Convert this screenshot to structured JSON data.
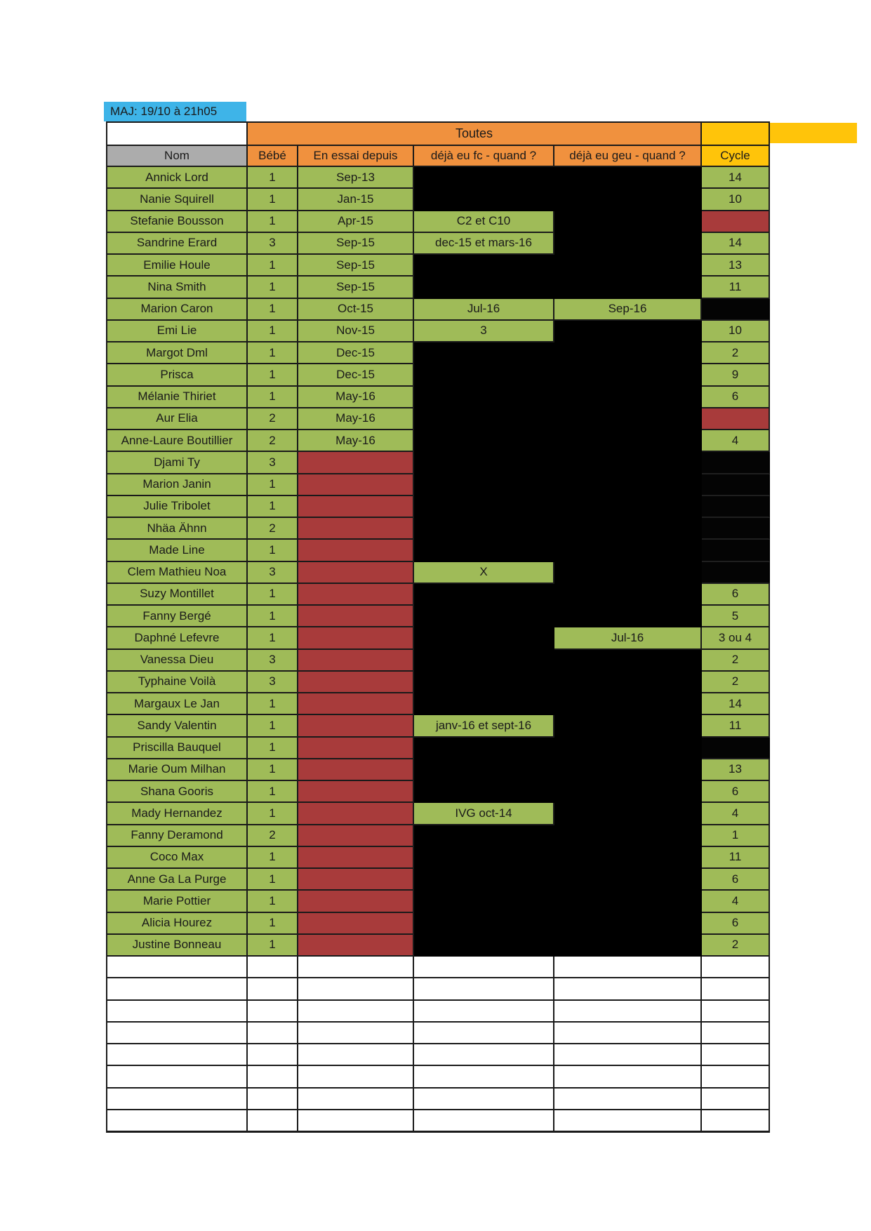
{
  "maj": {
    "text": "MAJ: 19/10 à 21h05"
  },
  "colors": {
    "blue": "#3eb4e8",
    "orange": "#f0913e",
    "yellow": "#ffc40a",
    "gray": "#acacac",
    "green": "#9fbb58",
    "red": "#a83b3b",
    "black": "#000000"
  },
  "table": {
    "group_header": {
      "title": "Toutes"
    },
    "columns": [
      "Nom",
      "Bébé",
      "En essai depuis",
      "déjà eu fc - quand ?",
      "déjà eu geu - quand ?",
      "Cycle"
    ],
    "rows": [
      {
        "name": "Annick Lord",
        "bebe": "1",
        "essai": {
          "v": "Sep-13",
          "s": "green"
        },
        "fc": {
          "v": "",
          "s": "black"
        },
        "geu": {
          "v": "",
          "s": "black"
        },
        "cycle": {
          "v": "14",
          "s": "green"
        }
      },
      {
        "name": "Nanie Squirell",
        "bebe": "1",
        "essai": {
          "v": "Jan-15",
          "s": "green"
        },
        "fc": {
          "v": "",
          "s": "black"
        },
        "geu": {
          "v": "",
          "s": "black"
        },
        "cycle": {
          "v": "10",
          "s": "green"
        }
      },
      {
        "name": "Stefanie Bousson",
        "bebe": "1",
        "essai": {
          "v": "Apr-15",
          "s": "green"
        },
        "fc": {
          "v": "C2 et C10",
          "s": "green"
        },
        "geu": {
          "v": "",
          "s": "black"
        },
        "cycle": {
          "v": "",
          "s": "red"
        }
      },
      {
        "name": "Sandrine Erard",
        "bebe": "3",
        "essai": {
          "v": "Sep-15",
          "s": "green"
        },
        "fc": {
          "v": "dec-15 et mars-16",
          "s": "green"
        },
        "geu": {
          "v": "",
          "s": "black"
        },
        "cycle": {
          "v": "14",
          "s": "green"
        }
      },
      {
        "name": "Emilie Houle",
        "bebe": "1",
        "essai": {
          "v": "Sep-15",
          "s": "green"
        },
        "fc": {
          "v": "",
          "s": "black"
        },
        "geu": {
          "v": "",
          "s": "black"
        },
        "cycle": {
          "v": "13",
          "s": "green"
        }
      },
      {
        "name": "Nina Smith",
        "bebe": "1",
        "essai": {
          "v": "Sep-15",
          "s": "green"
        },
        "fc": {
          "v": "",
          "s": "black"
        },
        "geu": {
          "v": "",
          "s": "black"
        },
        "cycle": {
          "v": "11",
          "s": "green"
        }
      },
      {
        "name": "Marion Caron",
        "bebe": "1",
        "essai": {
          "v": "Oct-15",
          "s": "green"
        },
        "fc": {
          "v": "Jul-16",
          "s": "green"
        },
        "geu": {
          "v": "Sep-16",
          "s": "green"
        },
        "cycle": {
          "v": "",
          "s": "black"
        }
      },
      {
        "name": "Emi Lie",
        "bebe": "1",
        "essai": {
          "v": "Nov-15",
          "s": "green"
        },
        "fc": {
          "v": "3",
          "s": "green"
        },
        "geu": {
          "v": "",
          "s": "black"
        },
        "cycle": {
          "v": "10",
          "s": "green"
        }
      },
      {
        "name": "Margot Dml",
        "bebe": "1",
        "essai": {
          "v": "Dec-15",
          "s": "green"
        },
        "fc": {
          "v": "",
          "s": "black"
        },
        "geu": {
          "v": "",
          "s": "black"
        },
        "cycle": {
          "v": "2",
          "s": "green"
        }
      },
      {
        "name": "Prisca",
        "bebe": "1",
        "essai": {
          "v": "Dec-15",
          "s": "green"
        },
        "fc": {
          "v": "",
          "s": "black"
        },
        "geu": {
          "v": "",
          "s": "black"
        },
        "cycle": {
          "v": "9",
          "s": "green"
        }
      },
      {
        "name": "Mélanie Thiriet",
        "bebe": "1",
        "essai": {
          "v": "May-16",
          "s": "green"
        },
        "fc": {
          "v": "",
          "s": "black"
        },
        "geu": {
          "v": "",
          "s": "black"
        },
        "cycle": {
          "v": "6",
          "s": "green"
        }
      },
      {
        "name": "Aur Elia",
        "bebe": "2",
        "essai": {
          "v": "May-16",
          "s": "green"
        },
        "fc": {
          "v": "",
          "s": "black"
        },
        "geu": {
          "v": "",
          "s": "black"
        },
        "cycle": {
          "v": "",
          "s": "red"
        }
      },
      {
        "name": "Anne-Laure Boutillier",
        "bebe": "2",
        "essai": {
          "v": "May-16",
          "s": "green"
        },
        "fc": {
          "v": "",
          "s": "black"
        },
        "geu": {
          "v": "",
          "s": "black"
        },
        "cycle": {
          "v": "4",
          "s": "green"
        }
      },
      {
        "name": "Djami Ty",
        "bebe": "3",
        "essai": {
          "v": "",
          "s": "red"
        },
        "fc": {
          "v": "",
          "s": "black"
        },
        "geu": {
          "v": "",
          "s": "black"
        },
        "cycle": {
          "v": "",
          "s": "black"
        }
      },
      {
        "name": "Marion Janin",
        "bebe": "1",
        "essai": {
          "v": "",
          "s": "red"
        },
        "fc": {
          "v": "",
          "s": "black"
        },
        "geu": {
          "v": "",
          "s": "black"
        },
        "cycle": {
          "v": "",
          "s": "black"
        }
      },
      {
        "name": "Julie Tribolet",
        "bebe": "1",
        "essai": {
          "v": "",
          "s": "red"
        },
        "fc": {
          "v": "",
          "s": "black"
        },
        "geu": {
          "v": "",
          "s": "black"
        },
        "cycle": {
          "v": "",
          "s": "black"
        }
      },
      {
        "name": "Nhäa Ähnn",
        "bebe": "2",
        "essai": {
          "v": "",
          "s": "red"
        },
        "fc": {
          "v": "",
          "s": "black"
        },
        "geu": {
          "v": "",
          "s": "black"
        },
        "cycle": {
          "v": "",
          "s": "black"
        }
      },
      {
        "name": "Made Line",
        "bebe": "1",
        "essai": {
          "v": "",
          "s": "red"
        },
        "fc": {
          "v": "",
          "s": "black"
        },
        "geu": {
          "v": "",
          "s": "black"
        },
        "cycle": {
          "v": "",
          "s": "black"
        }
      },
      {
        "name": "Clem Mathieu Noa",
        "bebe": "3",
        "essai": {
          "v": "",
          "s": "red"
        },
        "fc": {
          "v": "X",
          "s": "green"
        },
        "geu": {
          "v": "",
          "s": "black"
        },
        "cycle": {
          "v": "",
          "s": "black"
        }
      },
      {
        "name": "Suzy Montillet",
        "bebe": "1",
        "essai": {
          "v": "",
          "s": "red"
        },
        "fc": {
          "v": "",
          "s": "black"
        },
        "geu": {
          "v": "",
          "s": "black"
        },
        "cycle": {
          "v": "6",
          "s": "green"
        }
      },
      {
        "name": "Fanny Bergé",
        "bebe": "1",
        "essai": {
          "v": "",
          "s": "red"
        },
        "fc": {
          "v": "",
          "s": "black"
        },
        "geu": {
          "v": "",
          "s": "black"
        },
        "cycle": {
          "v": "5",
          "s": "green"
        }
      },
      {
        "name": "Daphné Lefevre",
        "bebe": "1",
        "essai": {
          "v": "",
          "s": "red"
        },
        "fc": {
          "v": "",
          "s": "black"
        },
        "geu": {
          "v": "Jul-16",
          "s": "green"
        },
        "cycle": {
          "v": "3 ou 4",
          "s": "green"
        }
      },
      {
        "name": "Vanessa Dieu",
        "bebe": "3",
        "essai": {
          "v": "",
          "s": "red"
        },
        "fc": {
          "v": "",
          "s": "black"
        },
        "geu": {
          "v": "",
          "s": "black"
        },
        "cycle": {
          "v": "2",
          "s": "green"
        }
      },
      {
        "name": "Typhaine Voilà",
        "bebe": "3",
        "essai": {
          "v": "",
          "s": "red"
        },
        "fc": {
          "v": "",
          "s": "black"
        },
        "geu": {
          "v": "",
          "s": "black"
        },
        "cycle": {
          "v": "2",
          "s": "green"
        }
      },
      {
        "name": "Margaux Le Jan",
        "bebe": "1",
        "essai": {
          "v": "",
          "s": "red"
        },
        "fc": {
          "v": "",
          "s": "black"
        },
        "geu": {
          "v": "",
          "s": "black"
        },
        "cycle": {
          "v": "14",
          "s": "green"
        }
      },
      {
        "name": "Sandy Valentin",
        "bebe": "1",
        "essai": {
          "v": "",
          "s": "red"
        },
        "fc": {
          "v": "janv-16 et sept-16",
          "s": "green"
        },
        "geu": {
          "v": "",
          "s": "black"
        },
        "cycle": {
          "v": "11",
          "s": "green"
        }
      },
      {
        "name": "Priscilla Bauquel",
        "bebe": "1",
        "essai": {
          "v": "",
          "s": "red"
        },
        "fc": {
          "v": "",
          "s": "black"
        },
        "geu": {
          "v": "",
          "s": "black"
        },
        "cycle": {
          "v": "",
          "s": "black"
        }
      },
      {
        "name": "Marie Oum Milhan",
        "bebe": "1",
        "essai": {
          "v": "",
          "s": "red"
        },
        "fc": {
          "v": "",
          "s": "black"
        },
        "geu": {
          "v": "",
          "s": "black"
        },
        "cycle": {
          "v": "13",
          "s": "green"
        }
      },
      {
        "name": "Shana Gooris",
        "bebe": "1",
        "essai": {
          "v": "",
          "s": "red"
        },
        "fc": {
          "v": "",
          "s": "black"
        },
        "geu": {
          "v": "",
          "s": "black"
        },
        "cycle": {
          "v": "6",
          "s": "green"
        }
      },
      {
        "name": "Mady Hernandez",
        "bebe": "1",
        "essai": {
          "v": "",
          "s": "red"
        },
        "fc": {
          "v": "IVG oct-14",
          "s": "green"
        },
        "geu": {
          "v": "",
          "s": "black"
        },
        "cycle": {
          "v": "4",
          "s": "green"
        }
      },
      {
        "name": "Fanny Deramond",
        "bebe": "2",
        "essai": {
          "v": "",
          "s": "red"
        },
        "fc": {
          "v": "",
          "s": "black"
        },
        "geu": {
          "v": "",
          "s": "black"
        },
        "cycle": {
          "v": "1",
          "s": "green"
        }
      },
      {
        "name": "Coco Max",
        "bebe": "1",
        "essai": {
          "v": "",
          "s": "red"
        },
        "fc": {
          "v": "",
          "s": "black"
        },
        "geu": {
          "v": "",
          "s": "black"
        },
        "cycle": {
          "v": "11",
          "s": "green"
        }
      },
      {
        "name": "Anne Ga La Purge",
        "bebe": "1",
        "essai": {
          "v": "",
          "s": "red"
        },
        "fc": {
          "v": "",
          "s": "black"
        },
        "geu": {
          "v": "",
          "s": "black"
        },
        "cycle": {
          "v": "6",
          "s": "green"
        }
      },
      {
        "name": "Marie Pottier",
        "bebe": "1",
        "essai": {
          "v": "",
          "s": "red"
        },
        "fc": {
          "v": "",
          "s": "black"
        },
        "geu": {
          "v": "",
          "s": "black"
        },
        "cycle": {
          "v": "4",
          "s": "green"
        }
      },
      {
        "name": "Alicia Hourez",
        "bebe": "1",
        "essai": {
          "v": "",
          "s": "red"
        },
        "fc": {
          "v": "",
          "s": "black"
        },
        "geu": {
          "v": "",
          "s": "black"
        },
        "cycle": {
          "v": "6",
          "s": "green"
        }
      },
      {
        "name": "Justine Bonneau",
        "bebe": "1",
        "essai": {
          "v": "",
          "s": "red"
        },
        "fc": {
          "v": "",
          "s": "black"
        },
        "geu": {
          "v": "",
          "s": "black"
        },
        "cycle": {
          "v": "2",
          "s": "green"
        }
      }
    ],
    "empty_rows": 8
  }
}
